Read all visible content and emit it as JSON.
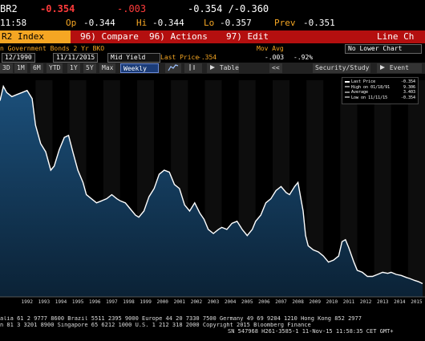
{
  "ticker": {
    "row1": {
      "code": "BR2",
      "last": "-0.354",
      "change": "-.003",
      "bid_ask": "-0.354 /-0.360"
    },
    "row2": {
      "time": "11:58",
      "op_label": "Op",
      "op": "-0.344",
      "hi_label": "Hi",
      "hi": "-0.344",
      "lo_label": "Lo",
      "lo": "-0.357",
      "prev_label": "Prev",
      "prev": "-0.351"
    }
  },
  "command_bar": {
    "index_label": "R2 Index",
    "compare": "96) Compare",
    "actions": "96) Actions",
    "edit": "97) Edit",
    "line_chart": "Line Ch"
  },
  "info_row": {
    "security_name": "n Government Bonds 2 Yr BKO",
    "mov_avg": "Mov Avg",
    "lower_chart": "No Lower Chart",
    "start_date": "12/1990",
    "end_date": "11/11/2015",
    "field": "Mid Yield",
    "last_price_label": "Last Price",
    "last_price": "-.354",
    "change": "-.003",
    "pct_change": "-.92%"
  },
  "toolbar": {
    "ranges": [
      "3D",
      "1M",
      "6M",
      "YTD",
      "1Y",
      "5Y",
      "Max"
    ],
    "period": "Weekly",
    "table": "Table",
    "back": "<<",
    "security_study": "Security/Study",
    "event": "Event"
  },
  "legend": {
    "items": [
      {
        "label": "Last Price",
        "value": "-0.354"
      },
      {
        "label": "High on 01/18/91",
        "value": "9.306"
      },
      {
        "label": "Average",
        "value": "3.403"
      },
      {
        "label": "Low on 11/11/15",
        "value": "-0.354"
      }
    ]
  },
  "chart_data": {
    "type": "area",
    "x": [
      1990.9,
      1991.1,
      1991.3,
      1991.6,
      1991.9,
      1992.2,
      1992.5,
      1992.8,
      1993.0,
      1993.3,
      1993.6,
      1993.9,
      1994.1,
      1994.4,
      1994.7,
      1994.95,
      1995.2,
      1995.5,
      1995.8,
      1996.0,
      1996.3,
      1996.6,
      1996.9,
      1997.2,
      1997.5,
      1997.8,
      1998.0,
      1998.3,
      1998.6,
      1998.9,
      1999.1,
      1999.4,
      1999.7,
      2000.0,
      2000.3,
      2000.6,
      2000.9,
      2001.2,
      2001.5,
      2001.8,
      2002.1,
      2002.4,
      2002.7,
      2002.95,
      2003.2,
      2003.5,
      2003.8,
      2004.0,
      2004.3,
      2004.6,
      2004.9,
      2005.2,
      2005.5,
      2005.8,
      2006.0,
      2006.3,
      2006.6,
      2006.9,
      2007.2,
      2007.5,
      2007.8,
      2008.0,
      2008.3,
      2008.5,
      2008.8,
      2008.95,
      2009.1,
      2009.4,
      2009.7,
      2010.0,
      2010.3,
      2010.6,
      2010.9,
      2011.1,
      2011.3,
      2011.5,
      2011.8,
      2012.0,
      2012.3,
      2012.6,
      2012.9,
      2013.2,
      2013.5,
      2013.8,
      2014.0,
      2014.3,
      2014.6,
      2014.9,
      2015.1,
      2015.4,
      2015.6,
      2015.86
    ],
    "values": [
      8.6,
      9.3,
      9.0,
      8.8,
      8.9,
      9.0,
      9.1,
      8.7,
      7.4,
      6.5,
      6.1,
      5.2,
      5.4,
      6.2,
      6.8,
      6.9,
      6.1,
      5.2,
      4.6,
      4.0,
      3.8,
      3.6,
      3.7,
      3.8,
      4.0,
      3.8,
      3.7,
      3.6,
      3.3,
      3.0,
      2.9,
      3.2,
      3.9,
      4.3,
      5.0,
      5.2,
      5.1,
      4.5,
      4.3,
      3.5,
      3.2,
      3.6,
      3.1,
      2.8,
      2.3,
      2.1,
      2.3,
      2.4,
      2.3,
      2.6,
      2.7,
      2.3,
      2.0,
      2.3,
      2.7,
      3.0,
      3.6,
      3.8,
      4.2,
      4.4,
      4.1,
      4.0,
      4.4,
      4.6,
      3.2,
      2.0,
      1.5,
      1.3,
      1.2,
      1.0,
      0.7,
      0.8,
      1.0,
      1.7,
      1.8,
      1.4,
      0.7,
      0.3,
      0.2,
      0.0,
      0.0,
      0.1,
      0.2,
      0.15,
      0.2,
      0.1,
      0.05,
      -0.05,
      -0.1,
      -0.2,
      -0.25,
      -0.354
    ],
    "x_ticks": [
      "1992",
      "1993",
      "1994",
      "1995",
      "1996",
      "1997",
      "1998",
      "1999",
      "2000",
      "2001",
      "2002",
      "2003",
      "2004",
      "2005",
      "2006",
      "2007",
      "2008",
      "2009",
      "2010",
      "2011",
      "2012",
      "2013",
      "2014",
      "2015"
    ],
    "xlim": [
      1990.9,
      2016.0
    ],
    "ylim": [
      -1.0,
      9.6
    ],
    "line_color": "#ffffff",
    "fill_top_color": "#1b4f7a",
    "fill_bottom_color": "#0b2236"
  },
  "footer": {
    "lines": [
      "alia 61 2 9777 8600 Brazil 5511 2395 9000 Europe 44 20 7330 7500 Germany 49 69 9204 1210 Hong Kong 852 2977",
      "n 81 3 3201 8900          Singapore 65 6212 1000          U.S. 1 212 318 2000          Copyright 2015 Bloomberg Finance",
      "SN 547968 H261-3585-1 11-Nov-15 11:58:35 CET  GMT+"
    ]
  }
}
